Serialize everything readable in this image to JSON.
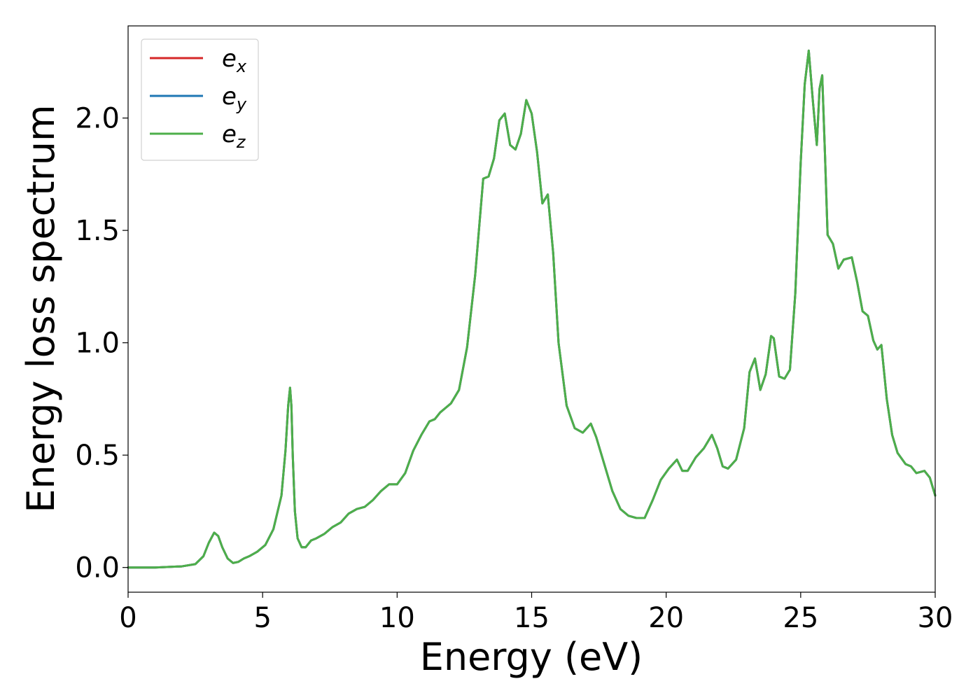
{
  "chart_data": {
    "type": "line",
    "xlabel": "Energy (eV)",
    "ylabel": "Energy loss spectrum",
    "xlim": [
      0,
      30
    ],
    "ylim": [
      -0.11,
      2.41
    ],
    "xticks": [
      0,
      5,
      10,
      15,
      20,
      25,
      30
    ],
    "yticks": [
      0.0,
      0.5,
      1.0,
      1.5,
      2.0
    ],
    "xtick_labels": [
      "0",
      "5",
      "10",
      "15",
      "20",
      "25",
      "30"
    ],
    "ytick_labels": [
      "0.0",
      "0.5",
      "1.0",
      "1.5",
      "2.0"
    ],
    "grid": false,
    "legend_position": "top-left",
    "legend_entries": [
      {
        "base": "e",
        "sub": "x",
        "color": "#d62728"
      },
      {
        "base": "e",
        "sub": "y",
        "color": "#1f77b4"
      },
      {
        "base": "e",
        "sub": "z",
        "color": "#4daf4a"
      }
    ],
    "x": [
      0,
      1,
      2,
      2.5,
      2.8,
      3.0,
      3.2,
      3.35,
      3.5,
      3.7,
      3.9,
      4.1,
      4.3,
      4.5,
      4.8,
      5.1,
      5.4,
      5.7,
      5.85,
      5.95,
      6.02,
      6.07,
      6.12,
      6.2,
      6.3,
      6.45,
      6.6,
      6.8,
      7.0,
      7.3,
      7.6,
      7.9,
      8.2,
      8.5,
      8.8,
      9.1,
      9.4,
      9.7,
      10.0,
      10.3,
      10.6,
      10.9,
      11.2,
      11.4,
      11.6,
      11.8,
      12.0,
      12.3,
      12.6,
      12.9,
      13.2,
      13.4,
      13.6,
      13.8,
      14.0,
      14.2,
      14.4,
      14.6,
      14.8,
      15.0,
      15.2,
      15.4,
      15.6,
      15.8,
      16.0,
      16.3,
      16.6,
      16.9,
      17.2,
      17.4,
      17.7,
      18.0,
      18.3,
      18.6,
      18.9,
      19.2,
      19.5,
      19.8,
      20.1,
      20.4,
      20.6,
      20.8,
      21.1,
      21.4,
      21.7,
      21.9,
      22.1,
      22.3,
      22.6,
      22.9,
      23.1,
      23.3,
      23.5,
      23.7,
      23.9,
      24.0,
      24.2,
      24.4,
      24.6,
      24.8,
      25.0,
      25.15,
      25.3,
      25.45,
      25.6,
      25.7,
      25.8,
      25.9,
      26.0,
      26.2,
      26.4,
      26.6,
      26.9,
      27.1,
      27.3,
      27.5,
      27.7,
      27.85,
      28.0,
      28.2,
      28.4,
      28.6,
      28.9,
      29.1,
      29.3,
      29.6,
      29.8,
      30.0
    ],
    "series": [
      {
        "name": "e_x",
        "color": "#d62728",
        "y": [
          0.0,
          0.0,
          0.005,
          0.015,
          0.05,
          0.11,
          0.155,
          0.14,
          0.09,
          0.04,
          0.02,
          0.025,
          0.04,
          0.05,
          0.07,
          0.1,
          0.17,
          0.32,
          0.52,
          0.72,
          0.8,
          0.72,
          0.5,
          0.25,
          0.13,
          0.09,
          0.09,
          0.12,
          0.13,
          0.15,
          0.18,
          0.2,
          0.24,
          0.26,
          0.27,
          0.3,
          0.34,
          0.37,
          0.37,
          0.42,
          0.52,
          0.59,
          0.65,
          0.66,
          0.69,
          0.71,
          0.73,
          0.79,
          0.98,
          1.3,
          1.73,
          1.74,
          1.82,
          1.99,
          2.02,
          1.88,
          1.86,
          1.93,
          2.08,
          2.02,
          1.85,
          1.62,
          1.66,
          1.4,
          1.0,
          0.72,
          0.62,
          0.6,
          0.64,
          0.58,
          0.46,
          0.34,
          0.26,
          0.23,
          0.22,
          0.22,
          0.3,
          0.39,
          0.44,
          0.48,
          0.43,
          0.43,
          0.49,
          0.53,
          0.59,
          0.53,
          0.45,
          0.44,
          0.48,
          0.62,
          0.87,
          0.93,
          0.79,
          0.86,
          1.03,
          1.02,
          0.85,
          0.84,
          0.88,
          1.22,
          1.8,
          2.15,
          2.3,
          2.08,
          1.88,
          2.13,
          2.19,
          1.85,
          1.48,
          1.44,
          1.33,
          1.37,
          1.38,
          1.27,
          1.14,
          1.12,
          1.01,
          0.97,
          0.99,
          0.75,
          0.59,
          0.51,
          0.46,
          0.45,
          0.42,
          0.43,
          0.4,
          0.32
        ]
      },
      {
        "name": "e_y",
        "color": "#1f77b4",
        "y": [
          0.0,
          0.0,
          0.005,
          0.015,
          0.05,
          0.11,
          0.155,
          0.14,
          0.09,
          0.04,
          0.02,
          0.025,
          0.04,
          0.05,
          0.07,
          0.1,
          0.17,
          0.32,
          0.52,
          0.72,
          0.8,
          0.72,
          0.5,
          0.25,
          0.13,
          0.09,
          0.09,
          0.12,
          0.13,
          0.15,
          0.18,
          0.2,
          0.24,
          0.26,
          0.27,
          0.3,
          0.34,
          0.37,
          0.37,
          0.42,
          0.52,
          0.59,
          0.65,
          0.66,
          0.69,
          0.71,
          0.73,
          0.79,
          0.98,
          1.3,
          1.73,
          1.74,
          1.82,
          1.99,
          2.02,
          1.88,
          1.86,
          1.93,
          2.08,
          2.02,
          1.85,
          1.62,
          1.66,
          1.4,
          1.0,
          0.72,
          0.62,
          0.6,
          0.64,
          0.58,
          0.46,
          0.34,
          0.26,
          0.23,
          0.22,
          0.22,
          0.3,
          0.39,
          0.44,
          0.48,
          0.43,
          0.43,
          0.49,
          0.53,
          0.59,
          0.53,
          0.45,
          0.44,
          0.48,
          0.62,
          0.87,
          0.93,
          0.79,
          0.86,
          1.03,
          1.02,
          0.85,
          0.84,
          0.88,
          1.22,
          1.8,
          2.15,
          2.3,
          2.08,
          1.88,
          2.13,
          2.19,
          1.85,
          1.48,
          1.44,
          1.33,
          1.37,
          1.38,
          1.27,
          1.14,
          1.12,
          1.01,
          0.97,
          0.99,
          0.75,
          0.59,
          0.51,
          0.46,
          0.45,
          0.42,
          0.43,
          0.4,
          0.32
        ]
      },
      {
        "name": "e_z",
        "color": "#4daf4a",
        "y": [
          0.0,
          0.0,
          0.005,
          0.015,
          0.05,
          0.11,
          0.155,
          0.14,
          0.09,
          0.04,
          0.02,
          0.025,
          0.04,
          0.05,
          0.07,
          0.1,
          0.17,
          0.32,
          0.52,
          0.72,
          0.8,
          0.72,
          0.5,
          0.25,
          0.13,
          0.09,
          0.09,
          0.12,
          0.13,
          0.15,
          0.18,
          0.2,
          0.24,
          0.26,
          0.27,
          0.3,
          0.34,
          0.37,
          0.37,
          0.42,
          0.52,
          0.59,
          0.65,
          0.66,
          0.69,
          0.71,
          0.73,
          0.79,
          0.98,
          1.3,
          1.73,
          1.74,
          1.82,
          1.99,
          2.02,
          1.88,
          1.86,
          1.93,
          2.08,
          2.02,
          1.85,
          1.62,
          1.66,
          1.4,
          1.0,
          0.72,
          0.62,
          0.6,
          0.64,
          0.58,
          0.46,
          0.34,
          0.26,
          0.23,
          0.22,
          0.22,
          0.3,
          0.39,
          0.44,
          0.48,
          0.43,
          0.43,
          0.49,
          0.53,
          0.59,
          0.53,
          0.45,
          0.44,
          0.48,
          0.62,
          0.87,
          0.93,
          0.79,
          0.86,
          1.03,
          1.02,
          0.85,
          0.84,
          0.88,
          1.22,
          1.8,
          2.15,
          2.3,
          2.08,
          1.88,
          2.13,
          2.19,
          1.85,
          1.48,
          1.44,
          1.33,
          1.37,
          1.38,
          1.27,
          1.14,
          1.12,
          1.01,
          0.97,
          0.99,
          0.75,
          0.59,
          0.51,
          0.46,
          0.45,
          0.42,
          0.43,
          0.4,
          0.32
        ]
      }
    ]
  }
}
